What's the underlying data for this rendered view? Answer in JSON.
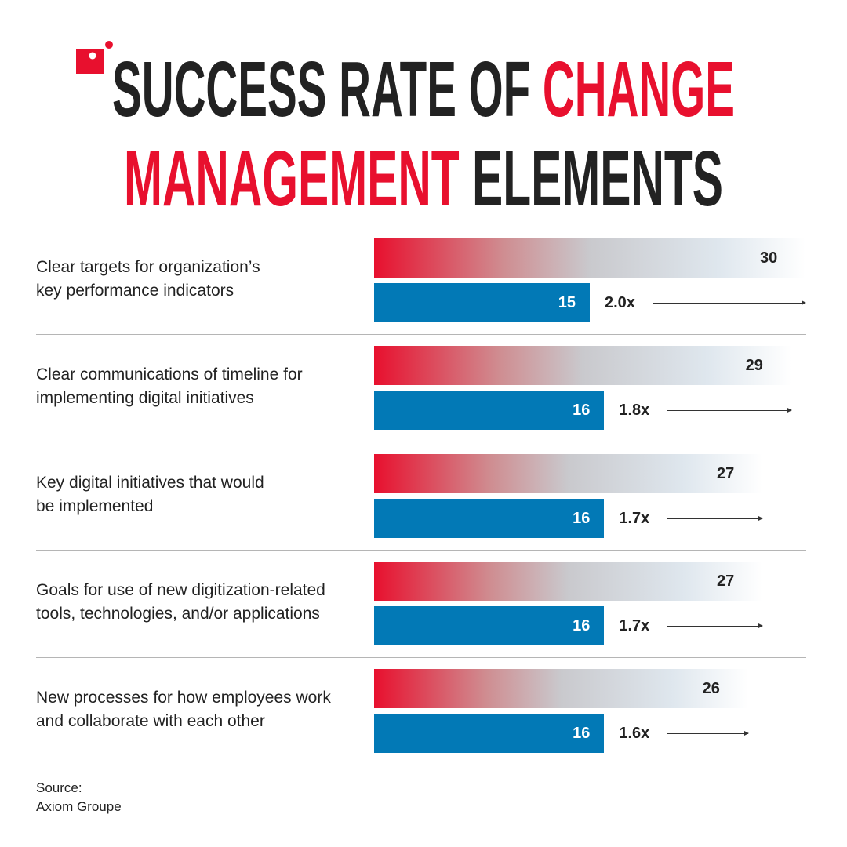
{
  "title": {
    "line1_dark": "SUCCESS RATE OF ",
    "line1_red": "CHANGE",
    "line2_red": "MANAGEMENT",
    "line2_dark": " ELEMENTS"
  },
  "colors": {
    "red": "#e8102e",
    "blue": "#0279b6",
    "dark": "#222222"
  },
  "logo": {
    "icon": "red-square-with-dot-logo"
  },
  "chart_data": {
    "type": "bar",
    "orientation": "horizontal",
    "categories": [
      "Clear targets for organization’s key performance indicators",
      "Clear communications of timeline for implementing digital initiatives",
      "Key digital initiatives that would be implemented",
      "Goals for use of new digitization-related tools, technologies, and/or applications",
      "New processes for how employees work and collaborate with each other"
    ],
    "label_lines": [
      [
        "Clear targets for organization’s",
        "key performance indicators"
      ],
      [
        "Clear communications of timeline for",
        "implementing digital initiatives"
      ],
      [
        "Key digital initiatives that would",
        "be implemented"
      ],
      [
        "Goals for use of new digitization-related",
        "tools, technologies, and/or applications"
      ],
      [
        "New processes for how employees work",
        "and collaborate with each other"
      ]
    ],
    "series": [
      {
        "values": [
          30,
          29,
          27,
          27,
          26
        ],
        "color": "red-gradient"
      },
      {
        "values": [
          15,
          16,
          16,
          16,
          16
        ],
        "color": "#0279b6"
      }
    ],
    "ratios": [
      "2.0x",
      "1.8x",
      "1.7x",
      "1.7x",
      "1.6x"
    ],
    "xlim": [
      0,
      30
    ],
    "grid": false
  },
  "source": {
    "line1": "Source:",
    "line2": "Axiom Groupe"
  }
}
